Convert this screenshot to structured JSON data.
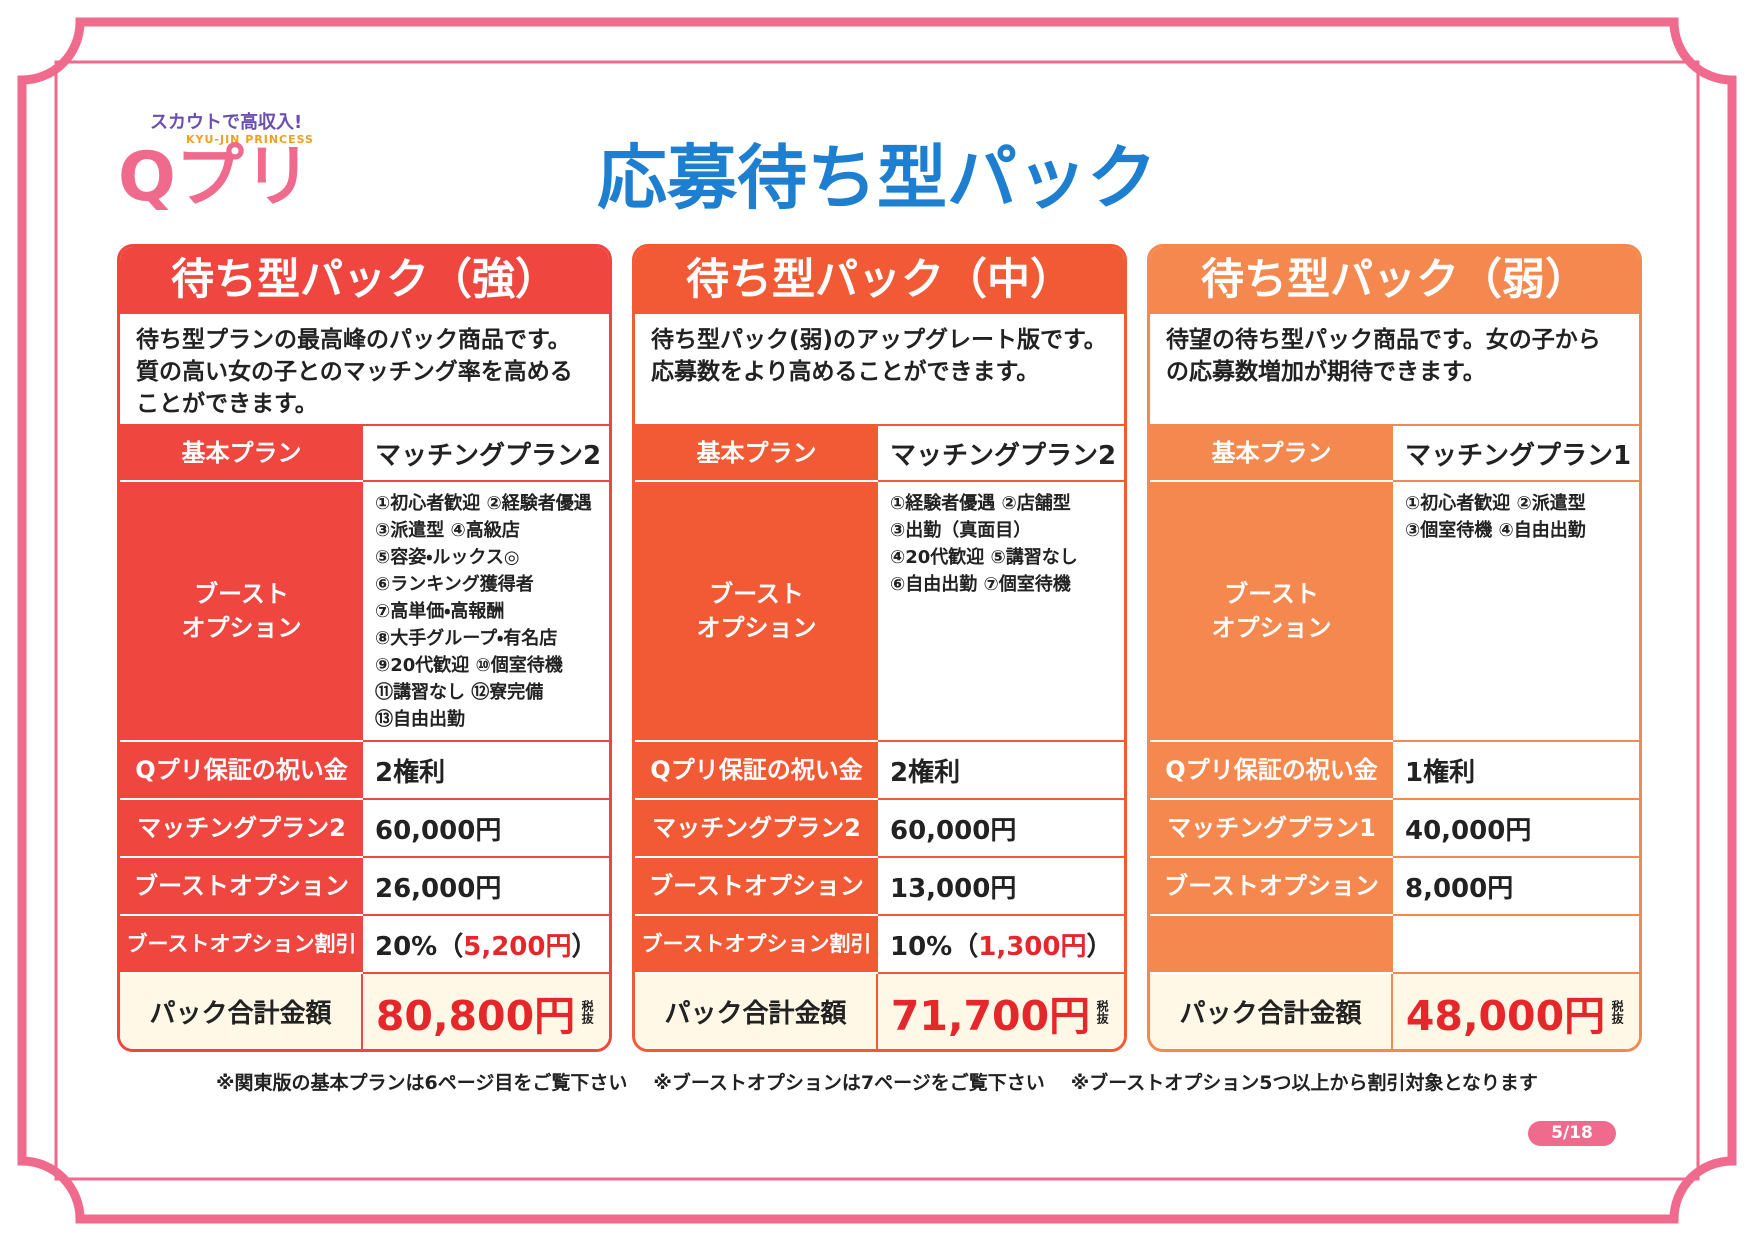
{
  "logo": {
    "tagline": "スカウトで高収入!",
    "subtitle": "KYU-JIN PRINCESS",
    "name": "Qプリ"
  },
  "title": "応募待ち型パック",
  "cards": [
    {
      "title": "待ち型パック（強）",
      "color": "#ef4640",
      "description": "待ち型プランの最高峰のパック商品です。質の高い女の子とのマッチング率を高めることができます。",
      "rows": [
        {
          "label": "基本プラン",
          "value": "マッチングプラン2"
        },
        {
          "label": "ブースト\nオプション",
          "options": [
            "①初心者歓迎 ②経験者優遇",
            "③派遣型 ④高級店",
            "⑤容姿・ルックス◎",
            "⑥ランキング獲得者",
            "⑦高単価・高報酬",
            "⑧大手グループ・有名店",
            "⑨20代歓迎 ⑩個室待機",
            "⑪講習なし ⑫寮完備",
            "⑬自由出勤"
          ]
        },
        {
          "label": "Qプリ保証の祝い金",
          "value": "2権利"
        },
        {
          "label": "マッチングプラン2",
          "value": "60,000円"
        },
        {
          "label": "ブーストオプション",
          "value": "26,000円"
        },
        {
          "label": "ブーストオプション割引",
          "parts": [
            "20%（",
            "5,200円",
            "）"
          ]
        }
      ],
      "total": {
        "label": "パック合計金額",
        "value": "80,800円",
        "tax": "税抜"
      }
    },
    {
      "title": "待ち型パック（中）",
      "color": "#f15a34",
      "description": "待ち型パック(弱)のアップグレート版です。応募数をより高めることができます。",
      "rows": [
        {
          "label": "基本プラン",
          "value": "マッチングプラン2"
        },
        {
          "label": "ブースト\nオプション",
          "options": [
            "①経験者優遇 ②店舗型",
            "③出勤（真面目）",
            "④20代歓迎 ⑤講習なし",
            "⑥自由出勤 ⑦個室待機"
          ]
        },
        {
          "label": "Qプリ保証の祝い金",
          "value": "2権利"
        },
        {
          "label": "マッチングプラン2",
          "value": "60,000円"
        },
        {
          "label": "ブーストオプション",
          "value": "13,000円"
        },
        {
          "label": "ブーストオプション割引",
          "parts": [
            "10%（",
            "1,300円",
            "）"
          ]
        }
      ],
      "total": {
        "label": "パック合計金額",
        "value": "71,700円",
        "tax": "税抜"
      }
    },
    {
      "title": "待ち型パック（弱）",
      "color": "#f5884f",
      "description": "待望の待ち型パック商品です。女の子からの応募数増加が期待できます。",
      "rows": [
        {
          "label": "基本プラン",
          "value": "マッチングプラン1"
        },
        {
          "label": "ブースト\nオプション",
          "options": [
            "①初心者歓迎 ②派遣型",
            "③個室待機 ④自由出勤"
          ]
        },
        {
          "label": "Qプリ保証の祝い金",
          "value": "1権利"
        },
        {
          "label": "マッチングプラン1",
          "value": "40,000円"
        },
        {
          "label": "ブーストオプション",
          "value": "8,000円"
        }
      ],
      "total": {
        "label": "パック合計金額",
        "value": "48,000円",
        "tax": "税抜"
      }
    }
  ],
  "footnotes": [
    "※関東版の基本プランは6ページ目をご覧下さい",
    "※ブーストオプションは7ページをご覧下さい",
    "※ブーストオプション5つ以上から割引対象となります"
  ],
  "page_number": "5/18"
}
